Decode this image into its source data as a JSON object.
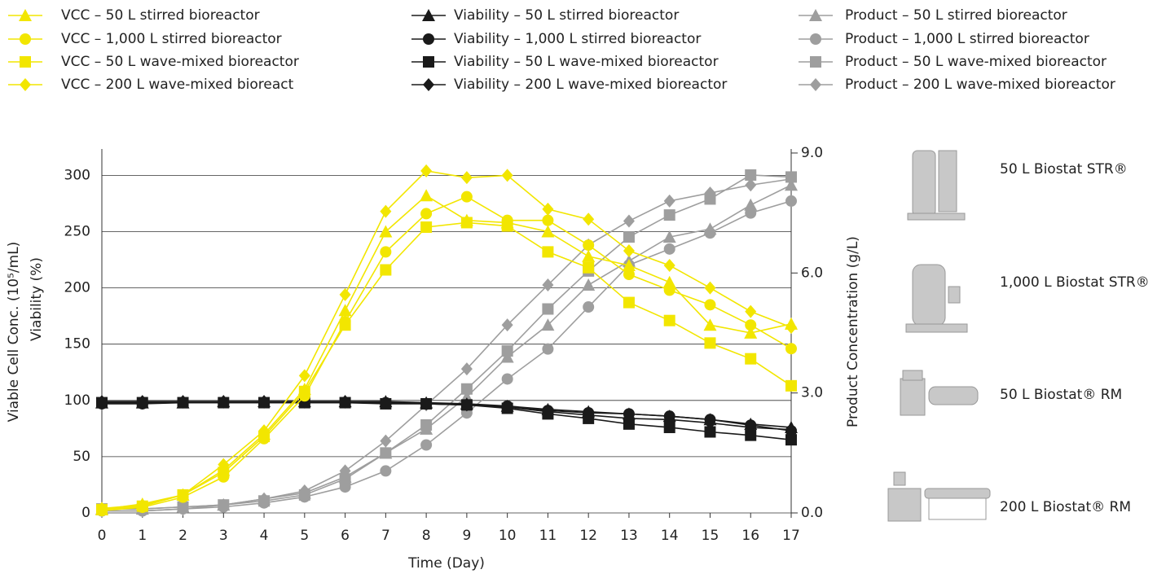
{
  "chart_data": {
    "type": "line",
    "x": [
      0,
      1,
      2,
      3,
      4,
      5,
      6,
      7,
      8,
      9,
      10,
      11,
      12,
      13,
      14,
      15,
      16,
      17
    ],
    "xlim": [
      0,
      17
    ],
    "xticks": [
      0,
      1,
      2,
      3,
      4,
      5,
      6,
      7,
      8,
      9,
      10,
      11,
      12,
      13,
      14,
      15,
      16,
      17
    ],
    "ylim": [
      0,
      322
    ],
    "yticks": [
      0,
      50,
      100,
      150,
      200,
      250,
      300
    ],
    "y2lim": [
      0,
      9.06
    ],
    "y2ticks": [
      {
        "value": 0,
        "label": "0.0"
      },
      {
        "value": 3,
        "label": "3.0"
      },
      {
        "value": 6,
        "label": "6.0"
      },
      {
        "value": 9,
        "label": "9.0"
      }
    ],
    "xlabel": "Time (Day)",
    "ylabel": [
      "Viable Cell Conc. (10⁵/mL)",
      "Viability (%)"
    ],
    "y2label": "Product Concentration (g/L)",
    "grid": true,
    "series": [
      {
        "name": "VCC – 50 L stirred bioreactor",
        "color": "#f2e600",
        "marker": "triangle",
        "values": [
          3,
          8,
          16,
          38,
          70,
          110,
          180,
          250,
          282,
          260,
          258,
          250,
          228,
          220,
          205,
          167,
          160,
          168
        ]
      },
      {
        "name": "VCC – 1,000 L stirred bioreactor",
        "color": "#f2e600",
        "marker": "circle",
        "values": [
          2,
          5,
          14,
          32,
          66,
          104,
          170,
          232,
          266,
          281,
          260,
          260,
          238,
          212,
          198,
          185,
          167,
          146
        ]
      },
      {
        "name": "VCC – 50 L wave-mixed bioreactor",
        "color": "#f2e600",
        "marker": "square",
        "values": [
          3,
          6,
          16,
          36,
          68,
          108,
          167,
          216,
          254,
          258,
          255,
          232,
          218,
          187,
          171,
          151,
          137,
          113
        ]
      },
      {
        "name": "VCC – 200 L wave-mixed bioreact",
        "color": "#f2e600",
        "marker": "diamond",
        "values": [
          4,
          7,
          16,
          43,
          73,
          122,
          194,
          268,
          304,
          298,
          300,
          270,
          261,
          233,
          220,
          200,
          179,
          165
        ]
      },
      {
        "name": "Viability – 50 L stirred bioreactor",
        "color": "#1a1a1a",
        "marker": "triangle",
        "values": [
          98,
          98,
          98,
          99,
          99,
          99,
          99,
          99,
          98,
          97,
          95,
          92,
          90,
          88,
          86,
          83,
          79,
          76
        ]
      },
      {
        "name": "Viability – 1,000 L stirred bioreactor",
        "color": "#1a1a1a",
        "marker": "circle",
        "values": [
          97,
          97,
          98,
          98,
          98,
          98,
          98,
          98,
          97,
          96,
          95,
          91,
          89,
          88,
          86,
          83,
          78,
          73
        ]
      },
      {
        "name": "Viability – 50 L wave-mixed bioreactor",
        "color": "#1a1a1a",
        "marker": "square",
        "values": [
          98,
          98,
          98,
          98,
          98,
          98,
          98,
          97,
          97,
          96,
          93,
          88,
          84,
          79,
          76,
          72,
          69,
          65
        ]
      },
      {
        "name": "Viability – 200 L wave-mixed bioreactor",
        "color": "#1a1a1a",
        "marker": "diamond",
        "values": [
          99,
          99,
          99,
          99,
          99,
          99,
          99,
          98,
          97,
          96,
          94,
          90,
          87,
          84,
          83,
          80,
          76,
          74
        ]
      },
      {
        "name": "Product – 50 L stirred bioreactor",
        "color": "#9e9e9e",
        "marker": "triangle",
        "axis": "y2",
        "values": [
          0.1,
          0.1,
          0.15,
          0.2,
          0.35,
          0.5,
          0.9,
          1.5,
          2.1,
          2.9,
          3.9,
          4.7,
          5.7,
          6.3,
          6.9,
          7.1,
          7.7,
          8.2
        ]
      },
      {
        "name": "Product – 1,000 L stirred bioreactor",
        "color": "#9e9e9e",
        "marker": "circle",
        "axis": "y2",
        "values": [
          0.05,
          0.05,
          0.1,
          0.15,
          0.25,
          0.4,
          0.65,
          1.05,
          1.7,
          2.5,
          3.35,
          4.1,
          5.15,
          6.2,
          6.6,
          7.0,
          7.5,
          7.8
        ]
      },
      {
        "name": "Product – 50 L wave-mixed bioreactor",
        "color": "#9e9e9e",
        "marker": "square",
        "axis": "y2",
        "values": [
          0.1,
          0.1,
          0.15,
          0.2,
          0.3,
          0.45,
          0.85,
          1.5,
          2.2,
          3.1,
          4.05,
          5.1,
          6.05,
          6.9,
          7.45,
          7.85,
          8.45,
          8.4
        ]
      },
      {
        "name": "Product – 200 L wave-mixed bioreactor",
        "color": "#9e9e9e",
        "marker": "diamond",
        "axis": "y2",
        "values": [
          0.05,
          0.05,
          0.1,
          0.2,
          0.35,
          0.55,
          1.05,
          1.8,
          2.7,
          3.6,
          4.7,
          5.7,
          6.7,
          7.3,
          7.8,
          8.0,
          8.2,
          8.35
        ]
      }
    ]
  },
  "equipment": [
    "50 L Biostat STR®",
    "1,000 L Biostat STR®",
    "50 L Biostat® RM",
    "200 L Biostat® RM"
  ]
}
